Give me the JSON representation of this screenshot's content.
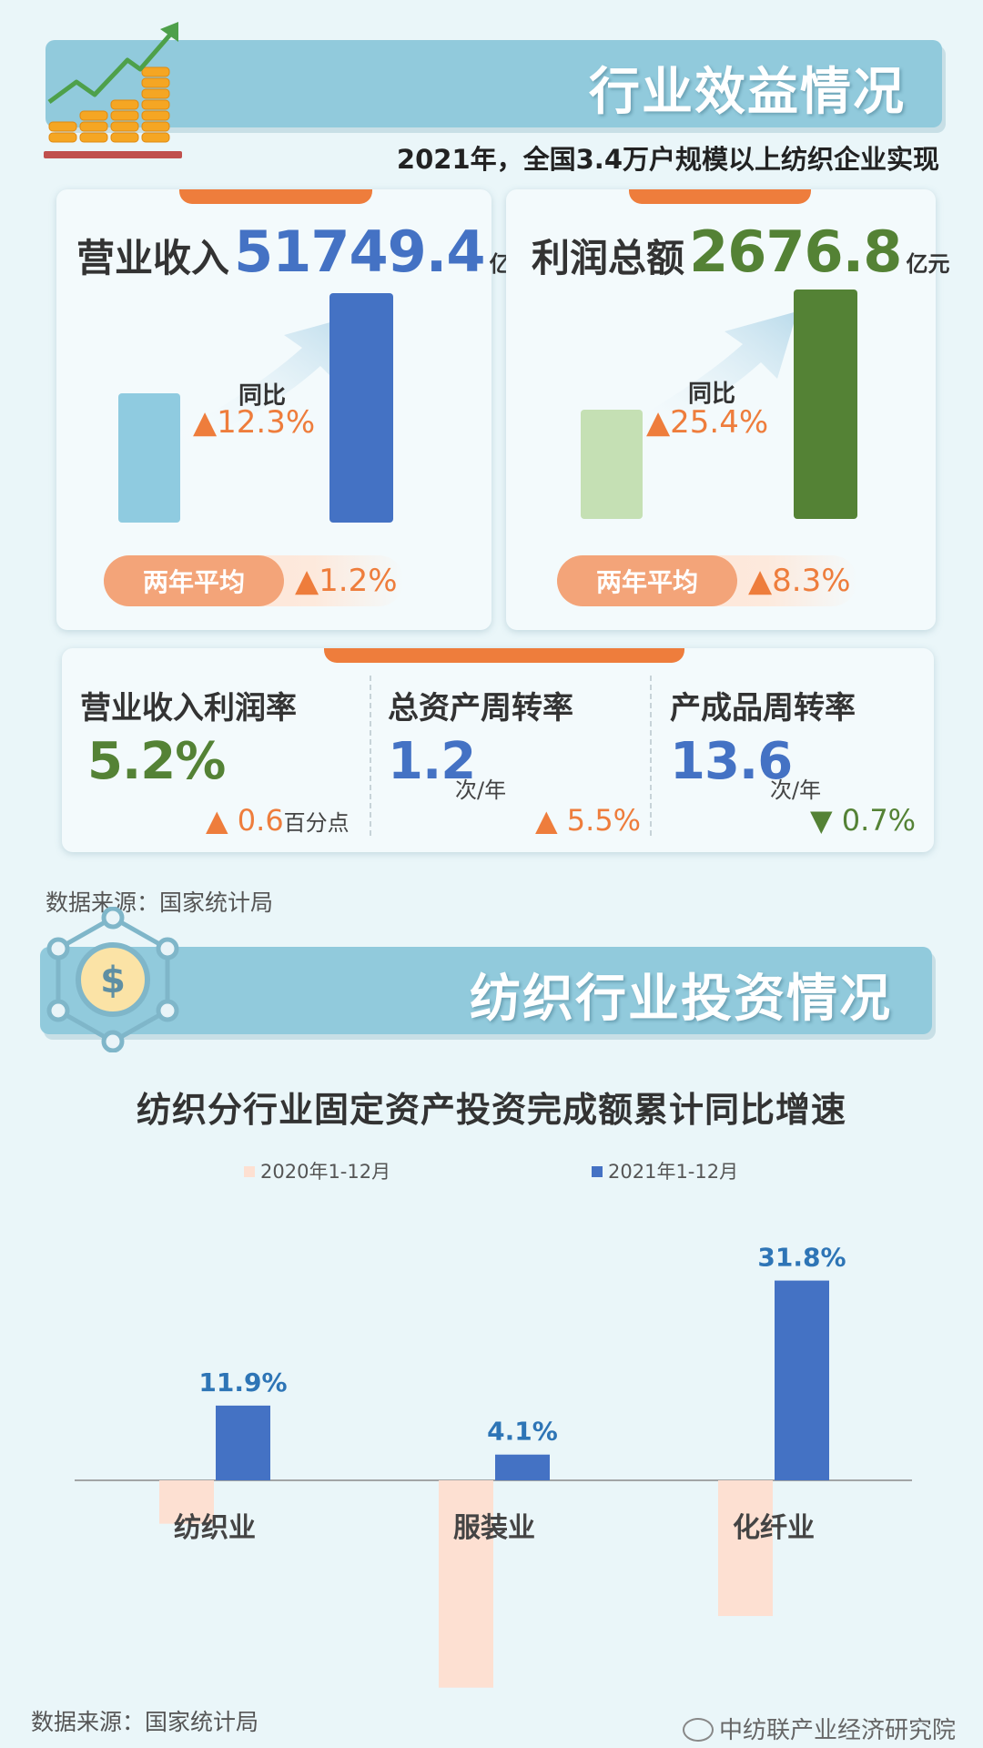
{
  "section1": {
    "title": "行业效益情况",
    "subtitle": "2021年，全国3.4万户规模以上纺织企业实现"
  },
  "revenue": {
    "label": "营业收入",
    "value": "51749.4",
    "unit": "亿元",
    "yoy_label": "同比",
    "yoy_value": "▲12.3%",
    "avg_label": "两年平均",
    "avg_value": "▲1.2%",
    "color": "#4472c4"
  },
  "profit": {
    "label": "利润总额",
    "value": "2676.8",
    "unit": "亿元",
    "yoy_label": "同比",
    "yoy_value": "▲25.4%",
    "avg_label": "两年平均",
    "avg_value": "▲8.3%",
    "color": "#548235"
  },
  "metrics": [
    {
      "label": "营业收入利润率",
      "value": "5.2%",
      "unit": "",
      "change": "▲ 0.6",
      "change_unit": "百分点",
      "value_color": "#548235",
      "change_color": "#ee7d3c"
    },
    {
      "label": "总资产周转率",
      "value": "1.2",
      "unit": "次/年",
      "change": "▲ 5.5%",
      "change_unit": "",
      "value_color": "#4472c4",
      "change_color": "#ee7d3c"
    },
    {
      "label": "产成品周转率",
      "value": "13.6",
      "unit": "次/年",
      "change": "▼ 0.7%",
      "change_unit": "",
      "value_color": "#4472c4",
      "change_color": "#548235"
    }
  ],
  "source1": "数据来源：国家统计局",
  "section2": {
    "title": "纺织行业投资情况"
  },
  "chart_data": {
    "type": "bar",
    "title": "纺织分行业固定资产投资完成额累计同比增速",
    "categories": [
      "纺织业",
      "服装业",
      "化纤业"
    ],
    "series": [
      {
        "name": "2020年1-12月",
        "values": [
          -6.9,
          -33.0,
          -21.6
        ],
        "color": "#fde0d2"
      },
      {
        "name": "2021年1-12月",
        "values": [
          11.9,
          4.1,
          31.8
        ],
        "color": "#4472c4"
      }
    ],
    "data_labels": [
      "11.9%",
      "4.1%",
      "31.8%"
    ],
    "legend_position": "top",
    "grid": false
  },
  "source2": "数据来源：国家统计局",
  "watermark": "中纺联产业经济研究院"
}
